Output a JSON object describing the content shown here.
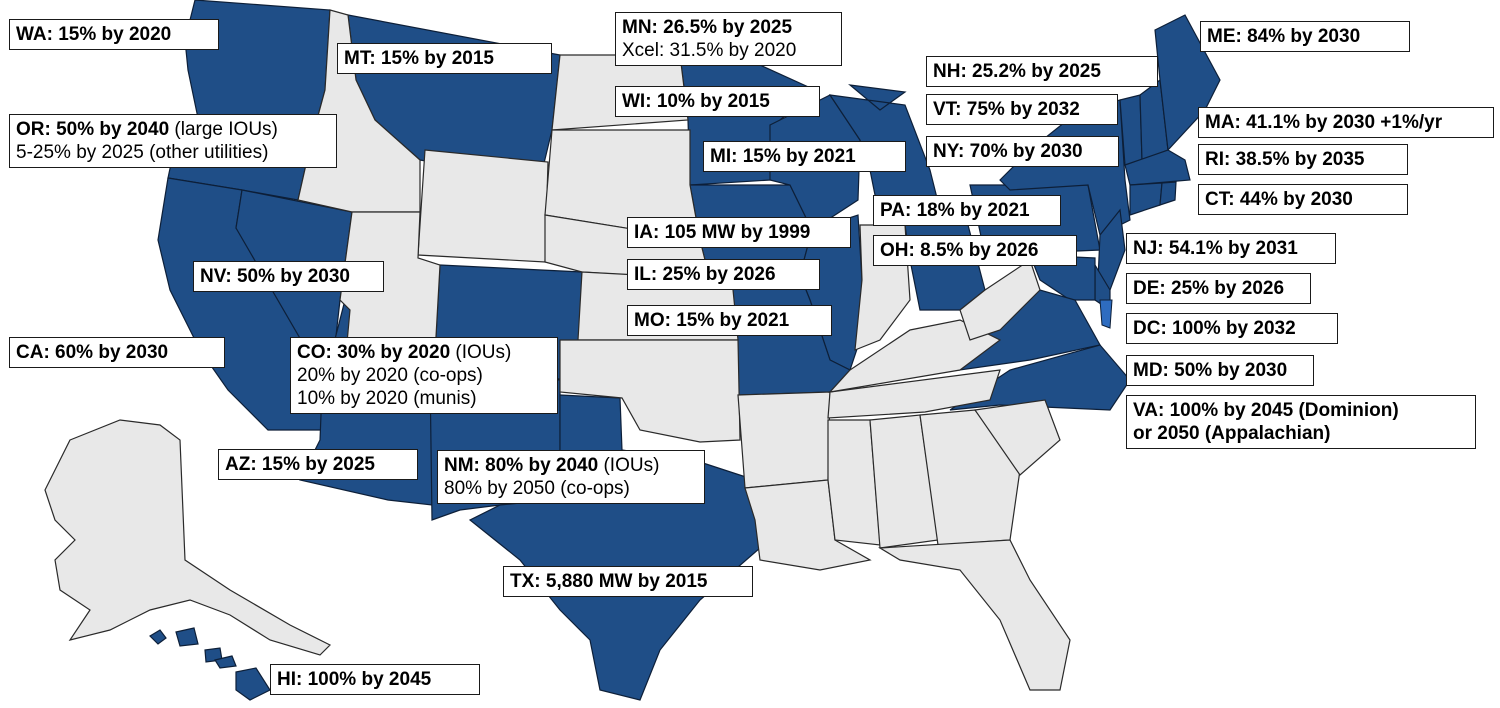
{
  "colors": {
    "target_state": "#1f4e87",
    "no_target_state": "#e8e8e8",
    "state_border": "#2a2a2a",
    "label_border": "#1a1a1a"
  },
  "labels": {
    "wa": {
      "bold": "WA: 15% by 2020",
      "rest": ""
    },
    "mt": {
      "bold": "MT: 15% by 2015",
      "rest": ""
    },
    "mn": {
      "bold": "MN: 26.5% by 2025",
      "rest": "",
      "line2": "Xcel: 31.5% by 2020"
    },
    "me": {
      "bold": "ME: 84% by 2030",
      "rest": ""
    },
    "nh": {
      "bold": "NH: 25.2% by 2025",
      "rest": ""
    },
    "wi": {
      "bold": "WI: 10% by 2015",
      "rest": ""
    },
    "vt": {
      "bold": "VT: 75% by 2032",
      "rest": ""
    },
    "ma": {
      "bold": "MA: 41.1% by 2030 +1%/yr",
      "rest": ""
    },
    "or": {
      "bold": "OR: 50% by 2040",
      "rest": " (large IOUs)",
      "line2": "5-25% by 2025 (other utilities)"
    },
    "mi": {
      "bold": "MI: 15% by 2021",
      "rest": ""
    },
    "ny": {
      "bold": "NY: 70% by 2030",
      "rest": ""
    },
    "ri": {
      "bold": "RI: 38.5% by 2035",
      "rest": ""
    },
    "ct": {
      "bold": "CT: 44% by 2030",
      "rest": ""
    },
    "pa": {
      "bold": "PA: 18% by 2021",
      "rest": ""
    },
    "ia": {
      "bold": "IA: 105 MW by 1999",
      "rest": ""
    },
    "oh": {
      "bold": "OH: 8.5% by 2026",
      "rest": ""
    },
    "nj": {
      "bold": "NJ: 54.1% by 2031",
      "rest": ""
    },
    "nv": {
      "bold": "NV: 50% by 2030",
      "rest": ""
    },
    "il": {
      "bold": "IL: 25% by 2026",
      "rest": ""
    },
    "de": {
      "bold": "DE: 25% by 2026",
      "rest": ""
    },
    "mo": {
      "bold": "MO: 15% by 2021",
      "rest": ""
    },
    "dc": {
      "bold": "DC: 100% by 2032",
      "rest": ""
    },
    "ca": {
      "bold": "CA: 60% by 2030",
      "rest": ""
    },
    "co": {
      "bold": "CO: 30% by 2020",
      "rest": " (IOUs)",
      "line2": "20% by 2020 (co-ops)",
      "line3": "10% by 2020 (munis)"
    },
    "md": {
      "bold": "MD: 50% by 2030",
      "rest": ""
    },
    "va": {
      "bold": "VA: 100% by 2045 (Dominion)",
      "rest": "",
      "line2b": "or 2050 (Appalachian)"
    },
    "az": {
      "bold": "AZ: 15% by 2025",
      "rest": ""
    },
    "nm": {
      "bold": "NM: 80% by 2040",
      "rest": " (IOUs)",
      "line2": "80% by 2050 (co-ops)"
    },
    "tx": {
      "bold": "TX: 5,880 MW by 2015",
      "rest": ""
    },
    "hi": {
      "bold": "HI: 100% by 2045",
      "rest": ""
    }
  }
}
